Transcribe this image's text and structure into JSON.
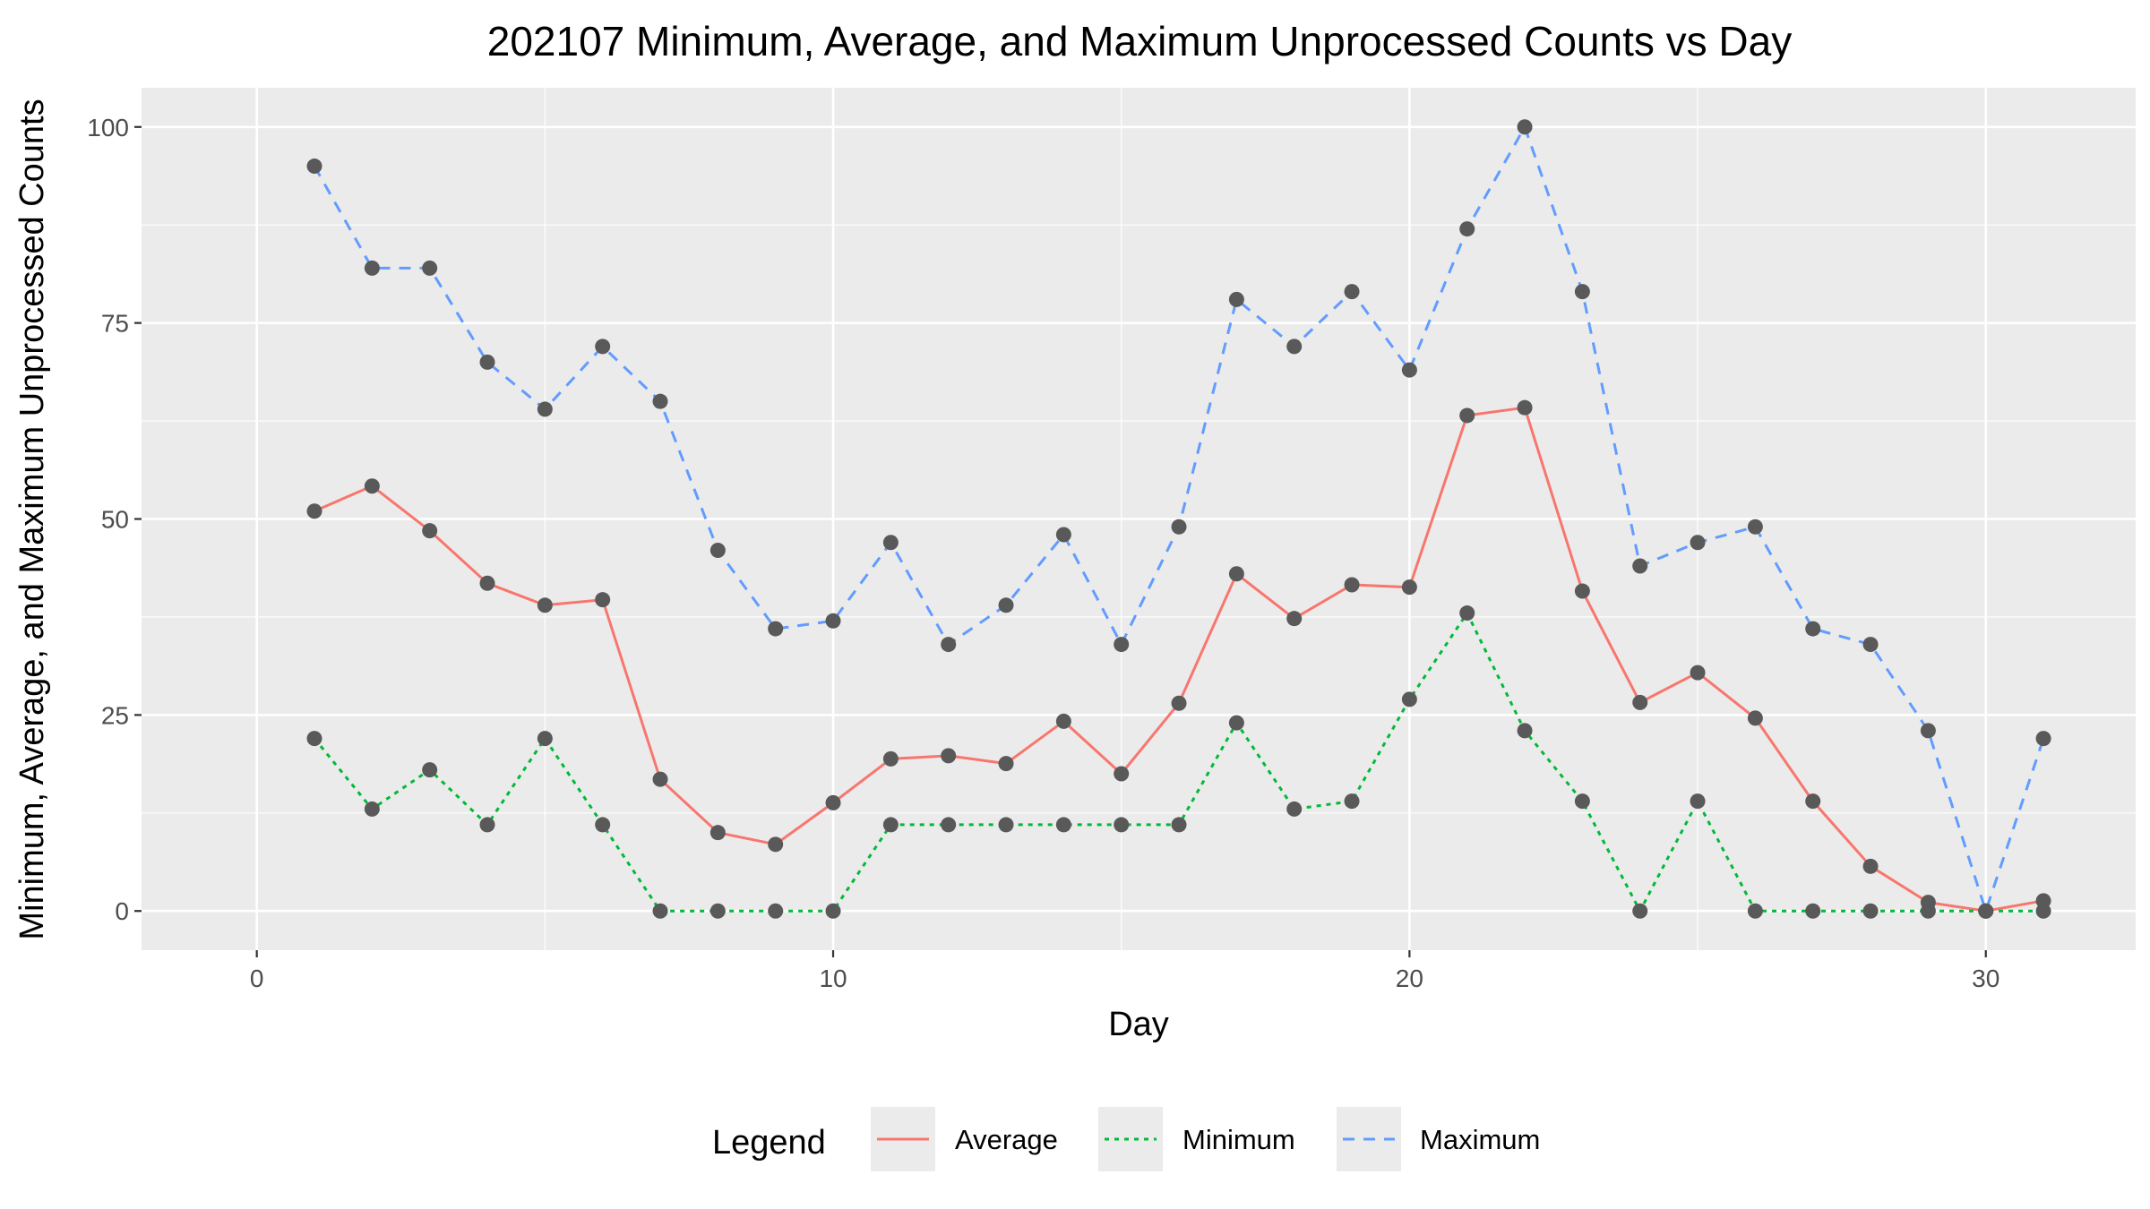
{
  "chart_data": {
    "type": "line",
    "title": "202107 Minimum, Average, and Maximum Unprocessed Counts vs Day",
    "xlabel": "Day",
    "ylabel": "Minimum, Average, and Maximum Unprocessed Counts",
    "xlim": [
      -2,
      32.6
    ],
    "ylim": [
      -5,
      105
    ],
    "x_ticks": [
      0,
      10,
      20,
      30
    ],
    "y_ticks": [
      0,
      25,
      50,
      75,
      100
    ],
    "grid": true,
    "legend": {
      "title": "Legend",
      "position": "bottom",
      "entries": [
        "Average",
        "Minimum",
        "Maximum"
      ]
    },
    "x": [
      1,
      2,
      3,
      4,
      5,
      6,
      7,
      8,
      9,
      10,
      11,
      12,
      13,
      14,
      15,
      16,
      17,
      18,
      19,
      20,
      21,
      22,
      23,
      24,
      25,
      26,
      27,
      28,
      29,
      30,
      31
    ],
    "series": [
      {
        "name": "Average",
        "color": "#F8766D",
        "dash": "solid",
        "values": [
          51,
          54.2,
          48.5,
          41.8,
          39,
          39.7,
          16.8,
          10,
          8.5,
          13.8,
          19.4,
          19.8,
          18.8,
          24.2,
          17.5,
          26.5,
          43,
          37.3,
          41.6,
          41.3,
          63.2,
          64.2,
          40.8,
          26.6,
          30.4,
          24.6,
          14,
          5.7,
          1.1,
          0,
          1.3
        ]
      },
      {
        "name": "Minimum",
        "color": "#00BA38",
        "dash": "dotted",
        "values": [
          22,
          13,
          18,
          11,
          22,
          11,
          0,
          0,
          0,
          0,
          11,
          11,
          11,
          11,
          11,
          11,
          24,
          13,
          14,
          27,
          38,
          23,
          14,
          0,
          14,
          0,
          0,
          0,
          0,
          0,
          0
        ]
      },
      {
        "name": "Maximum",
        "color": "#619CFF",
        "dash": "dashed",
        "values": [
          95,
          82,
          82,
          70,
          64,
          72,
          65,
          46,
          36,
          37,
          47,
          34,
          39,
          48,
          34,
          49,
          78,
          72,
          79,
          69,
          87,
          100,
          79,
          44,
          47,
          49,
          36,
          34,
          23,
          0,
          22
        ]
      }
    ]
  }
}
